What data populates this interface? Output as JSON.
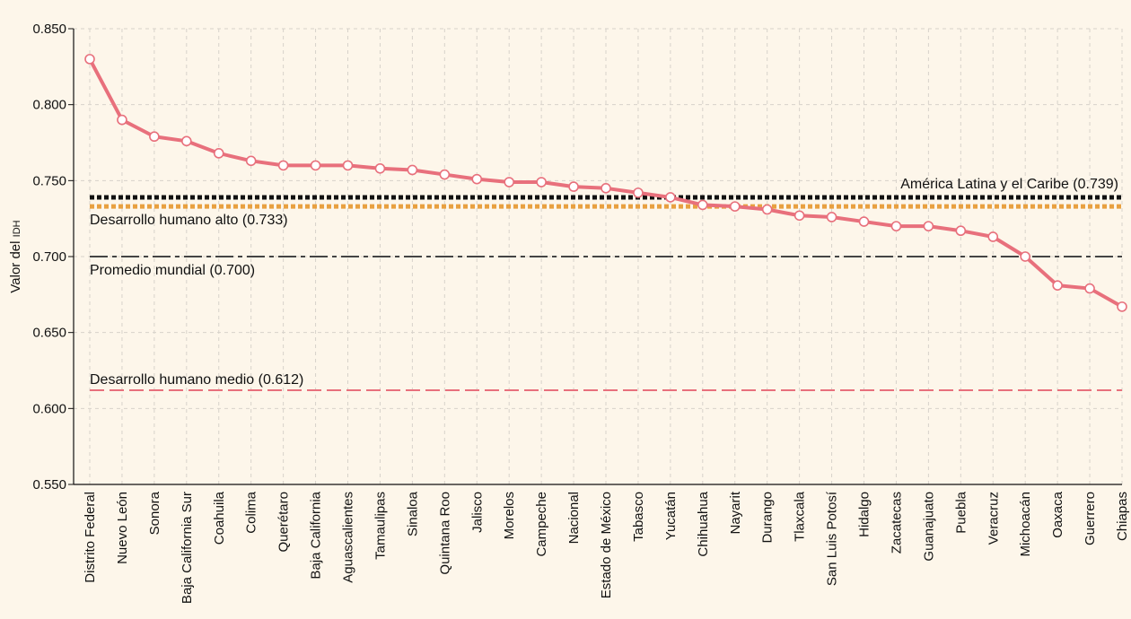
{
  "chart_data": {
    "type": "line",
    "title": "",
    "xlabel": "",
    "ylabel": "Valor del IDH",
    "ylabel_main": "Valor del ",
    "ylabel_smallcaps": "IDH",
    "ylim": [
      0.55,
      0.85
    ],
    "yticks": [
      "0.550",
      "0.600",
      "0.650",
      "0.700",
      "0.750",
      "0.800",
      "0.850"
    ],
    "grid": true,
    "legend": "none",
    "categories": [
      "Distrito Federal",
      "Nuevo León",
      "Sonora",
      "Baja California Sur",
      "Coahuila",
      "Colima",
      "Querétaro",
      "Baja California",
      "Aguascalientes",
      "Tamaulipas",
      "Sinaloa",
      "Quintana Roo",
      "Jalisco",
      "Morelos",
      "Campeche",
      "Nacional",
      "Estado de México",
      "Tabasco",
      "Yucatán",
      "Chihuahua",
      "Nayarit",
      "Durango",
      "Tlaxcala",
      "San Luis Potosí",
      "Hidalgo",
      "Zacatecas",
      "Guanajuato",
      "Puebla",
      "Veracruz",
      "Michoacán",
      "Oaxaca",
      "Guerrero",
      "Chiapas"
    ],
    "series": [
      {
        "color": "#e8707c",
        "values": [
          0.83,
          0.79,
          0.779,
          0.776,
          0.768,
          0.763,
          0.76,
          0.76,
          0.76,
          0.758,
          0.757,
          0.754,
          0.751,
          0.749,
          0.749,
          0.746,
          0.745,
          0.742,
          0.739,
          0.734,
          0.733,
          0.731,
          0.727,
          0.726,
          0.723,
          0.72,
          0.72,
          0.717,
          0.713,
          0.7,
          0.681,
          0.679,
          0.667
        ]
      }
    ],
    "reference_lines": [
      {
        "label": "América Latina y el Caribe (0.739)",
        "value": 0.739,
        "color": "#111111",
        "style": "dotted",
        "label_anchor": "right"
      },
      {
        "label": "Desarrollo humano alto (0.733)",
        "value": 0.733,
        "color": "#e8a040",
        "style": "dotted",
        "label_anchor": "left"
      },
      {
        "label": "Promedio mundial (0.700)",
        "value": 0.7,
        "color": "#444444",
        "style": "dashdot",
        "label_anchor": "left"
      },
      {
        "label": "Desarrollo humano medio (0.612)",
        "value": 0.612,
        "color": "#e8707c",
        "style": "dashed",
        "label_anchor": "left"
      }
    ]
  }
}
